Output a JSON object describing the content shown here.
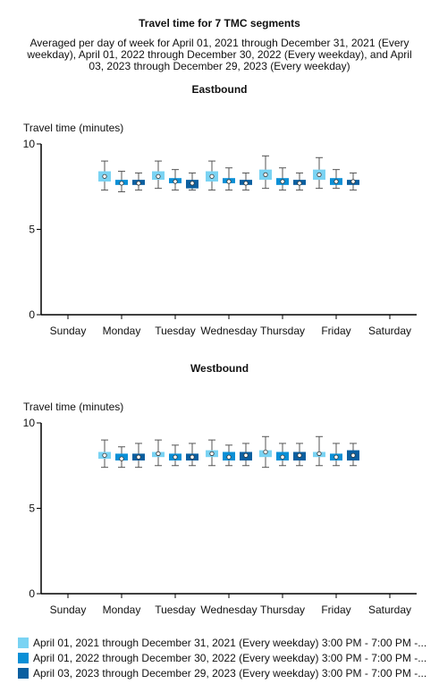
{
  "header": {
    "title": "Travel time for 7 TMC segments",
    "subtitle": "Averaged per day of week for April 01, 2021 through December 31, 2021 (Every weekday), April 01, 2022 through December 30, 2022 (Every weekday), and April 03, 2023 through December 29, 2023 (Every weekday)"
  },
  "colors": {
    "series": [
      "#7ad3f3",
      "#0a8fd6",
      "#0b5fa0"
    ],
    "axis": "#000000",
    "whisker": "#555555"
  },
  "legend": [
    {
      "label": "April 01, 2021 through December 31, 2021 (Every weekday) 3:00 PM - 7:00 PM -..."
    },
    {
      "label": "April 01, 2022 through December 30, 2022 (Every weekday) 3:00 PM - 7:00 PM -..."
    },
    {
      "label": "April 03, 2023 through December 29, 2023 (Every weekday) 3:00 PM - 7:00 PM -..."
    }
  ],
  "chart_data": [
    {
      "type": "box",
      "title": "Eastbound",
      "ylabel": "Travel time (minutes)",
      "ylim": [
        0,
        10
      ],
      "yticks": [
        0,
        5,
        10
      ],
      "categories": [
        "Sunday",
        "Monday",
        "Tuesday",
        "Wednesday",
        "Thursday",
        "Friday",
        "Saturday"
      ],
      "series": [
        {
          "boxes": [
            null,
            {
              "min": 7.3,
              "q1": 7.8,
              "median": 8.1,
              "q3": 8.4,
              "max": 9.0
            },
            {
              "min": 7.4,
              "q1": 7.9,
              "median": 8.1,
              "q3": 8.4,
              "max": 9.0
            },
            {
              "min": 7.3,
              "q1": 7.8,
              "median": 8.1,
              "q3": 8.4,
              "max": 9.0
            },
            {
              "min": 7.4,
              "q1": 7.9,
              "median": 8.2,
              "q3": 8.5,
              "max": 9.3
            },
            {
              "min": 7.4,
              "q1": 7.9,
              "median": 8.2,
              "q3": 8.5,
              "max": 9.2
            },
            null
          ]
        },
        {
          "boxes": [
            null,
            {
              "min": 7.2,
              "q1": 7.6,
              "median": 7.7,
              "q3": 7.9,
              "max": 8.4
            },
            {
              "min": 7.3,
              "q1": 7.7,
              "median": 7.8,
              "q3": 8.0,
              "max": 8.5
            },
            {
              "min": 7.3,
              "q1": 7.7,
              "median": 7.8,
              "q3": 8.0,
              "max": 8.6
            },
            {
              "min": 7.3,
              "q1": 7.6,
              "median": 7.8,
              "q3": 8.0,
              "max": 8.6
            },
            {
              "min": 7.4,
              "q1": 7.6,
              "median": 7.8,
              "q3": 8.0,
              "max": 8.5
            },
            null
          ]
        },
        {
          "boxes": [
            null,
            {
              "min": 7.3,
              "q1": 7.6,
              "median": 7.7,
              "q3": 7.9,
              "max": 8.3
            },
            {
              "min": 7.3,
              "q1": 7.4,
              "median": 7.7,
              "q3": 7.9,
              "max": 8.3
            },
            {
              "min": 7.3,
              "q1": 7.6,
              "median": 7.7,
              "q3": 7.9,
              "max": 8.3
            },
            {
              "min": 7.3,
              "q1": 7.6,
              "median": 7.7,
              "q3": 7.9,
              "max": 8.3
            },
            {
              "min": 7.3,
              "q1": 7.6,
              "median": 7.8,
              "q3": 7.9,
              "max": 8.3
            },
            null
          ]
        }
      ]
    },
    {
      "type": "box",
      "title": "Westbound",
      "ylabel": "Travel time (minutes)",
      "ylim": [
        0,
        10
      ],
      "yticks": [
        0,
        5,
        10
      ],
      "categories": [
        "Sunday",
        "Monday",
        "Tuesday",
        "Wednesday",
        "Thursday",
        "Friday",
        "Saturday"
      ],
      "series": [
        {
          "boxes": [
            null,
            {
              "min": 7.4,
              "q1": 7.9,
              "median": 8.1,
              "q3": 8.3,
              "max": 9.0
            },
            {
              "min": 7.5,
              "q1": 8.0,
              "median": 8.2,
              "q3": 8.3,
              "max": 9.0
            },
            {
              "min": 7.5,
              "q1": 8.0,
              "median": 8.2,
              "q3": 8.4,
              "max": 9.0
            },
            {
              "min": 7.4,
              "q1": 8.0,
              "median": 8.3,
              "q3": 8.4,
              "max": 9.2
            },
            {
              "min": 7.5,
              "q1": 8.0,
              "median": 8.2,
              "q3": 8.3,
              "max": 9.2
            },
            null
          ]
        },
        {
          "boxes": [
            null,
            {
              "min": 7.4,
              "q1": 7.8,
              "median": 7.9,
              "q3": 8.2,
              "max": 8.6
            },
            {
              "min": 7.5,
              "q1": 7.8,
              "median": 8.0,
              "q3": 8.2,
              "max": 8.7
            },
            {
              "min": 7.5,
              "q1": 7.8,
              "median": 8.0,
              "q3": 8.3,
              "max": 8.7
            },
            {
              "min": 7.5,
              "q1": 7.8,
              "median": 8.0,
              "q3": 8.3,
              "max": 8.8
            },
            {
              "min": 7.5,
              "q1": 7.8,
              "median": 8.0,
              "q3": 8.2,
              "max": 8.8
            },
            null
          ]
        },
        {
          "boxes": [
            null,
            {
              "min": 7.4,
              "q1": 7.8,
              "median": 8.0,
              "q3": 8.2,
              "max": 8.8
            },
            {
              "min": 7.5,
              "q1": 7.8,
              "median": 8.0,
              "q3": 8.2,
              "max": 8.8
            },
            {
              "min": 7.5,
              "q1": 7.8,
              "median": 8.1,
              "q3": 8.3,
              "max": 8.8
            },
            {
              "min": 7.5,
              "q1": 7.8,
              "median": 8.1,
              "q3": 8.3,
              "max": 8.8
            },
            {
              "min": 7.5,
              "q1": 7.8,
              "median": 8.1,
              "q3": 8.4,
              "max": 8.8
            },
            null
          ]
        }
      ]
    }
  ]
}
